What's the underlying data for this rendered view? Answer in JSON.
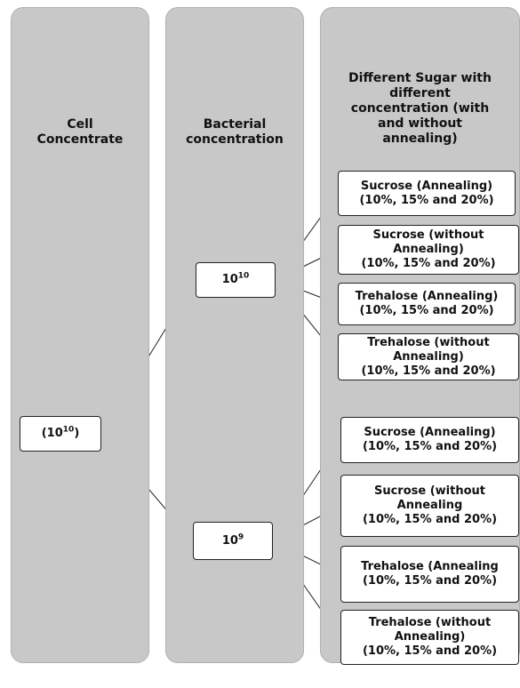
{
  "columns": [
    {
      "title": [
        "Cell",
        "Concentrate"
      ]
    },
    {
      "title": [
        "Bacterial",
        "concentration"
      ]
    },
    {
      "title": [
        "Different Sugar with",
        "different",
        "concentration (with",
        "and without",
        "annealing)"
      ]
    }
  ],
  "root": {
    "text": "(10",
    "sup": "10",
    "after": ")"
  },
  "branches": [
    {
      "text": "10",
      "sup": "10",
      "leaves": [
        {
          "lines": [
            "Sucrose (Annealing)",
            "(10%, 15% and 20%)"
          ]
        },
        {
          "lines": [
            "Sucrose (without",
            "Annealing)",
            "(10%, 15% and 20%)"
          ]
        },
        {
          "lines": [
            "Trehalose (Annealing)",
            "(10%, 15% and 20%)"
          ]
        },
        {
          "lines": [
            "Trehalose (without",
            "Annealing)",
            "(10%, 15% and 20%)"
          ]
        }
      ]
    },
    {
      "text": "10",
      "sup": "9",
      "leaves": [
        {
          "lines": [
            "Sucrose (Annealing)",
            "(10%, 15% and 20%)"
          ]
        },
        {
          "lines": [
            "Sucrose (without",
            "Annealing",
            "(10%, 15% and 20%)"
          ]
        },
        {
          "lines": [
            "Trehalose (Annealing",
            "(10%, 15% and 20%)"
          ]
        },
        {
          "lines": [
            "Trehalose (without",
            "Annealing)",
            "(10%, 15% and 20%)"
          ]
        }
      ]
    }
  ]
}
